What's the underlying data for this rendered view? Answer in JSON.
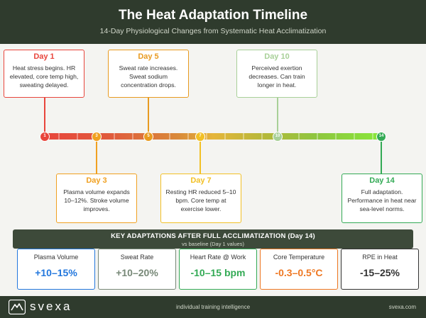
{
  "header": {
    "title": "The Heat Adaptation Timeline",
    "subtitle": "14-Day Physiological Changes from Systematic Heat Acclimatization"
  },
  "colors": {
    "day1": "#e8453c",
    "day3": "#f0a020",
    "day5": "#e89a20",
    "day7": "#f2c025",
    "day10": "#a8d098",
    "day14": "#33aa55",
    "plasma": "#2277dd",
    "sweat": "#778877",
    "heartrate": "#33aa55",
    "core": "#ee7722",
    "rpe": "#333333"
  },
  "milestones": [
    {
      "day": "Day 1",
      "description": "Heat stress begins. HR elevated, core temp high, sweating delayed.",
      "marker": "1"
    },
    {
      "day": "Day 3",
      "description": "Plasma volume expands 10–12%. Stroke volume improves.",
      "marker": "3"
    },
    {
      "day": "Day 5",
      "description": "Sweat rate increases. Sweat sodium concentration drops.",
      "marker": "5"
    },
    {
      "day": "Day 7",
      "description": "Resting HR reduced 5–10 bpm. Core temp at exercise lower.",
      "marker": "7"
    },
    {
      "day": "Day 10",
      "description": "Perceived exertion decreases. Can train longer in heat.",
      "marker": "10"
    },
    {
      "day": "Day 14",
      "description": "Full adaptation. Performance in heat near sea-level norms.",
      "marker": "14"
    }
  ],
  "key": {
    "title": "KEY ADAPTATIONS AFTER FULL ACCLIMATIZATION (Day 14)",
    "subtitle": "vs baseline (Day 1 values)"
  },
  "stats": [
    {
      "label": "Plasma Volume",
      "value": "+10–15%"
    },
    {
      "label": "Sweat Rate",
      "value": "+10–20%"
    },
    {
      "label": "Heart Rate @ Work",
      "value": "-10–15 bpm"
    },
    {
      "label": "Core Temperature",
      "value": "-0.3–0.5°C"
    },
    {
      "label": "RPE in Heat",
      "value": "-15–25%"
    }
  ],
  "footer": {
    "brand": "svexa",
    "tagline": "individual training intelligence",
    "site": "svexa.com"
  }
}
